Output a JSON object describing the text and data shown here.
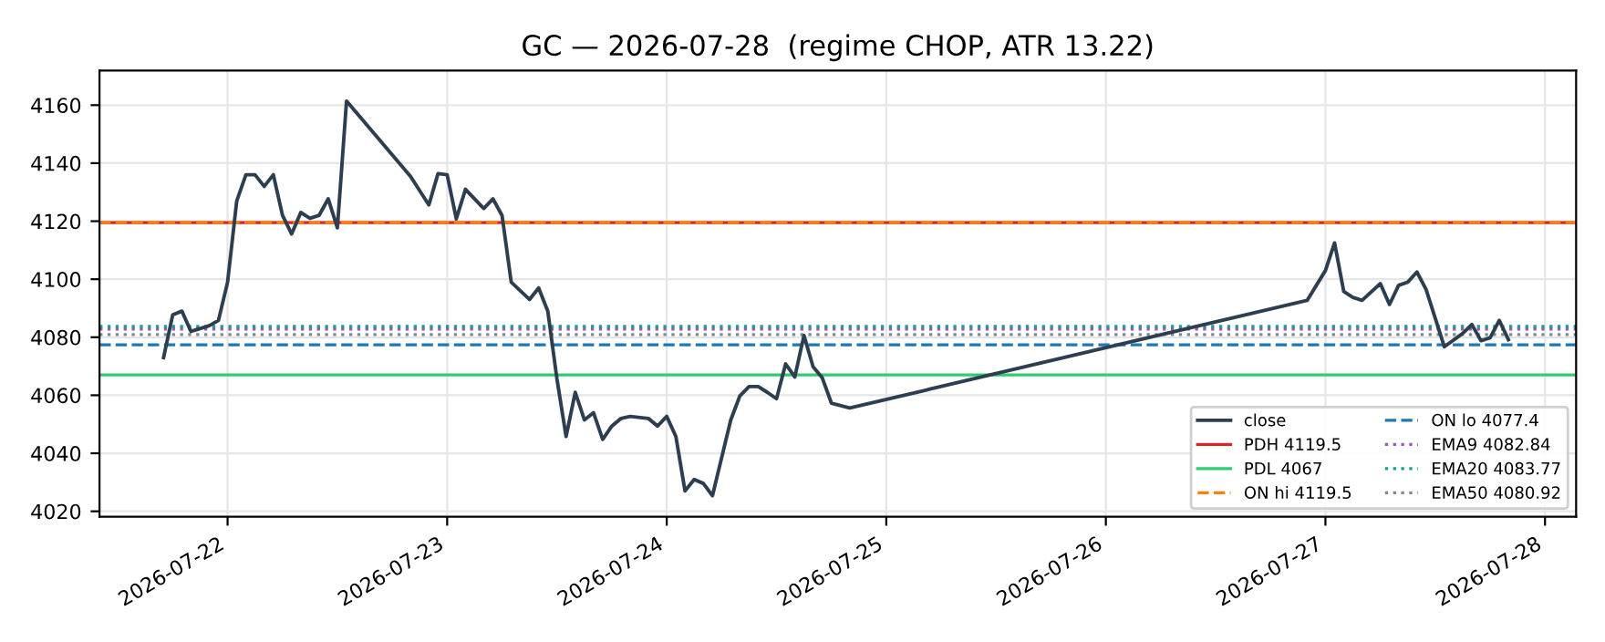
{
  "chart_data": {
    "type": "line",
    "title": "GC — 2026-07-28  (regime CHOP, ATR 13.22)",
    "x": [
      "2026-07-21T17:00",
      "2026-07-21T18:00",
      "2026-07-21T19:00",
      "2026-07-21T20:00",
      "2026-07-21T22:00",
      "2026-07-21T23:00",
      "2026-07-22T00:00",
      "2026-07-22T01:00",
      "2026-07-22T02:00",
      "2026-07-22T03:00",
      "2026-07-22T04:00",
      "2026-07-22T05:00",
      "2026-07-22T06:00",
      "2026-07-22T07:00",
      "2026-07-22T08:00",
      "2026-07-22T09:00",
      "2026-07-22T10:00",
      "2026-07-22T11:00",
      "2026-07-22T12:00",
      "2026-07-22T13:00",
      "2026-07-22T20:00",
      "2026-07-22T22:00",
      "2026-07-22T23:00",
      "2026-07-23T00:00",
      "2026-07-23T01:00",
      "2026-07-23T02:00",
      "2026-07-23T04:00",
      "2026-07-23T05:00",
      "2026-07-23T06:00",
      "2026-07-23T07:00",
      "2026-07-23T09:00",
      "2026-07-23T10:00",
      "2026-07-23T11:00",
      "2026-07-23T12:00",
      "2026-07-23T13:00",
      "2026-07-23T14:00",
      "2026-07-23T15:00",
      "2026-07-23T16:00",
      "2026-07-23T17:00",
      "2026-07-23T18:00",
      "2026-07-23T19:00",
      "2026-07-23T20:00",
      "2026-07-23T22:00",
      "2026-07-23T23:00",
      "2026-07-24T00:00",
      "2026-07-24T01:00",
      "2026-07-24T02:00",
      "2026-07-24T03:00",
      "2026-07-24T04:00",
      "2026-07-24T05:00",
      "2026-07-24T07:00",
      "2026-07-24T08:00",
      "2026-07-24T09:00",
      "2026-07-24T10:00",
      "2026-07-24T11:00",
      "2026-07-24T12:00",
      "2026-07-24T13:00",
      "2026-07-24T14:00",
      "2026-07-24T15:00",
      "2026-07-24T16:00",
      "2026-07-24T17:00",
      "2026-07-24T18:00",
      "2026-07-24T20:00",
      "2026-07-26T22:00",
      "2026-07-27T00:00",
      "2026-07-27T01:00",
      "2026-07-27T02:00",
      "2026-07-27T03:00",
      "2026-07-27T04:00",
      "2026-07-27T06:00",
      "2026-07-27T07:00",
      "2026-07-27T08:00",
      "2026-07-27T09:00",
      "2026-07-27T10:00",
      "2026-07-27T11:00",
      "2026-07-27T13:00",
      "2026-07-27T15:00",
      "2026-07-27T16:00",
      "2026-07-27T17:00",
      "2026-07-27T18:00",
      "2026-07-27T19:00",
      "2026-07-27T20:00"
    ],
    "series": [
      {
        "name": "close",
        "color": "#2c3e50",
        "values": [
          4073,
          4087.7,
          4089,
          4082,
          4084,
          4085.8,
          4099,
          4127,
          4136,
          4136,
          4132,
          4136,
          4122,
          4115.6,
          4123,
          4121,
          4122,
          4127.7,
          4117.7,
          4161.4,
          4135.4,
          4125.6,
          4136.4,
          4136,
          4120.8,
          4131,
          4124.4,
          4127.7,
          4122,
          4099,
          4093,
          4097,
          4089,
          4065.6,
          4045.8,
          4061,
          4051.5,
          4054,
          4044.8,
          4049.4,
          4052,
          4052.7,
          4052,
          4049.4,
          4052.7,
          4045.8,
          4027,
          4031,
          4029.6,
          4025.4,
          4051.5,
          4059.8,
          4063,
          4063,
          4061,
          4058.8,
          4070.8,
          4066.3,
          4080.6,
          4069.8,
          4066,
          4057.3,
          4055.6,
          4092.7,
          4103,
          4112.5,
          4095.8,
          4093.7,
          4092.7,
          4098.5,
          4091.3,
          4097.9,
          4099,
          4102.5,
          4096.5,
          4076.7,
          4081.3,
          4084.4,
          4078.8,
          4079.8,
          4085.8,
          4079.2
        ]
      }
    ],
    "ref_lines": [
      {
        "axis": "y",
        "value": 4119.5,
        "label": "PDH 4119.5",
        "color": "#d62728",
        "line_style": "solid"
      },
      {
        "axis": "y",
        "value": 4067,
        "label": "PDL 4067",
        "color": "#2ecc71",
        "line_style": "solid"
      },
      {
        "axis": "y",
        "value": 4119.5,
        "label": "ON hi 4119.5",
        "color": "#ff7f0e",
        "line_style": "dashed"
      },
      {
        "axis": "y",
        "value": 4077.4,
        "label": "ON lo 4077.4",
        "color": "#1f77b4",
        "line_style": "dashed"
      },
      {
        "axis": "y",
        "value": 4082.84,
        "label": "EMA9 4082.84",
        "color": "#9b59b6",
        "line_style": "dotted"
      },
      {
        "axis": "y",
        "value": 4083.77,
        "label": "EMA20 4083.77",
        "color": "#17a589",
        "line_style": "dotted"
      },
      {
        "axis": "y",
        "value": 4080.92,
        "label": "EMA50 4080.92",
        "color": "#7f8c8d",
        "line_style": "dotted"
      }
    ],
    "xlim": [
      "2026-07-21T10:00",
      "2026-07-28T03:24"
    ],
    "xticks": [
      {
        "value": "2026-07-22",
        "label": "2026-07-22"
      },
      {
        "value": "2026-07-23",
        "label": "2026-07-23"
      },
      {
        "value": "2026-07-24",
        "label": "2026-07-24"
      },
      {
        "value": "2026-07-25",
        "label": "2026-07-25"
      },
      {
        "value": "2026-07-26",
        "label": "2026-07-26"
      },
      {
        "value": "2026-07-27",
        "label": "2026-07-27"
      },
      {
        "value": "2026-07-28",
        "label": "2026-07-28"
      }
    ],
    "ylim": [
      4018.1,
      4171.9
    ],
    "yticks": [
      4020,
      4040,
      4060,
      4080,
      4100,
      4120,
      4140,
      4160
    ],
    "grid": true,
    "legend": "lower right",
    "marker": "none",
    "line_style": "solid"
  }
}
